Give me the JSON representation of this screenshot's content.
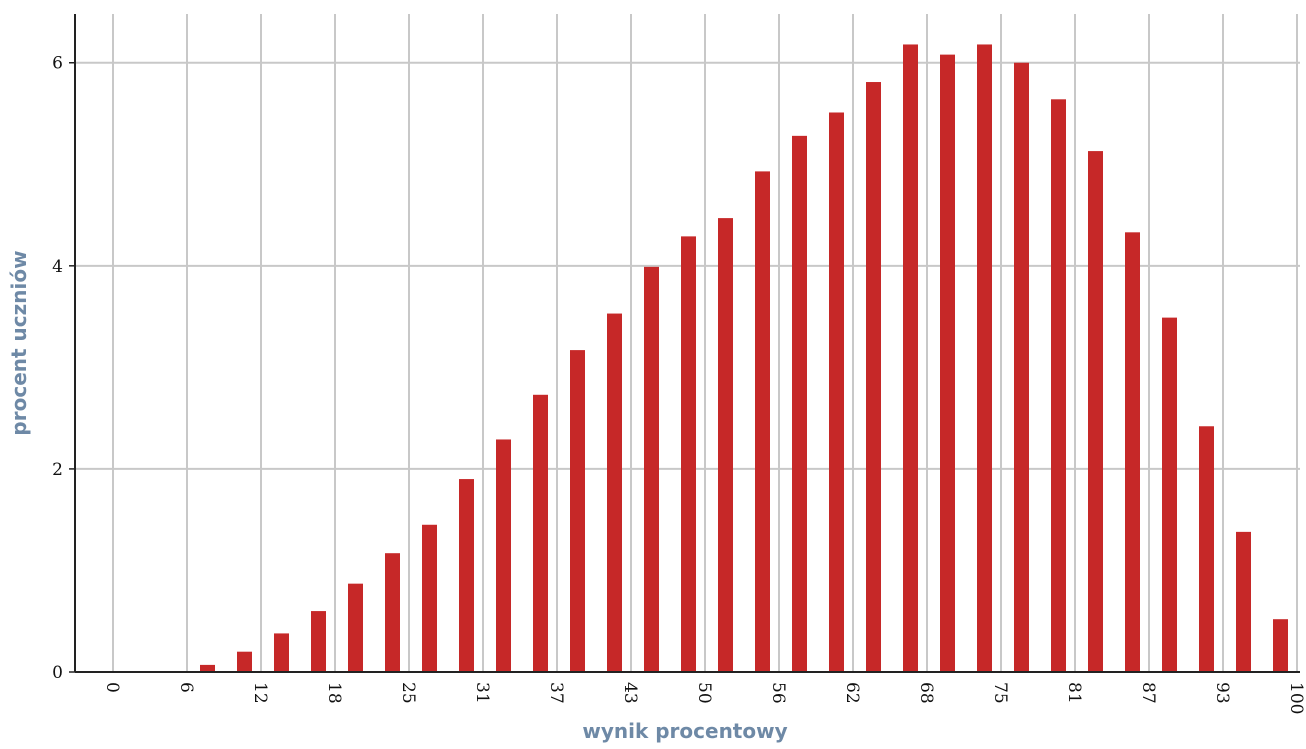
{
  "chart_data": {
    "type": "bar",
    "x_label": "wynik procentowy",
    "y_label": "procent uczniów",
    "categories": [
      "0",
      null,
      "6",
      null,
      "12",
      null,
      "18",
      null,
      "25",
      null,
      "31",
      null,
      "37",
      null,
      "43",
      null,
      "50",
      null,
      "56",
      null,
      "62",
      null,
      "68",
      null,
      "75",
      null,
      "81",
      null,
      "87",
      null,
      "93",
      null,
      "100"
    ],
    "values": [
      0,
      0,
      0,
      0.07,
      0.2,
      0.38,
      0.6,
      0.87,
      1.17,
      1.45,
      1.9,
      2.29,
      2.73,
      3.17,
      3.53,
      3.99,
      4.29,
      4.47,
      4.93,
      5.28,
      5.51,
      5.81,
      6.18,
      6.08,
      6.18,
      6.0,
      5.64,
      5.13,
      4.33,
      3.49,
      2.42,
      1.38,
      0.52
    ],
    "color": "#c62828",
    "ylim": [
      0,
      6.48
    ],
    "yticks": [
      0,
      2,
      4,
      6
    ],
    "grid": true
  }
}
